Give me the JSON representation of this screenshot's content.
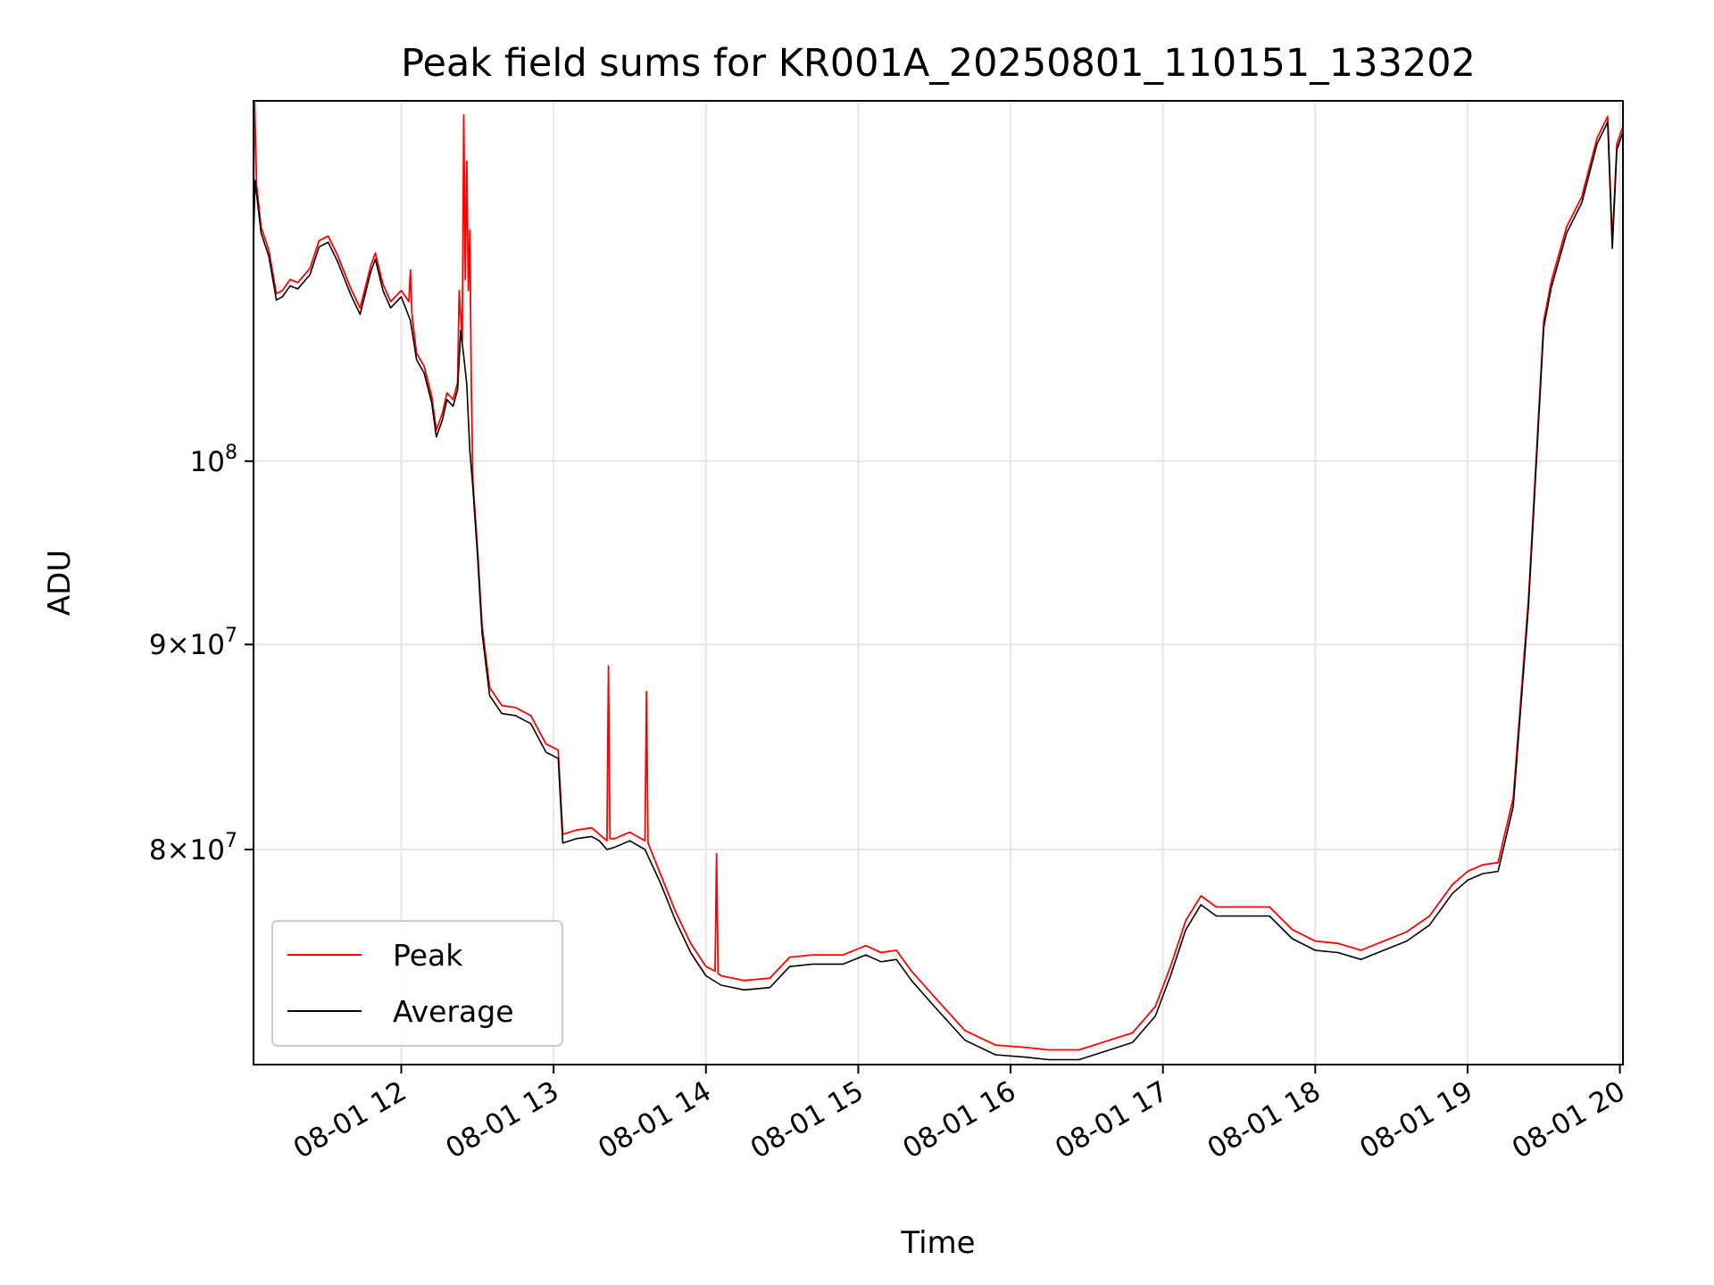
{
  "chart_data": {
    "type": "line",
    "title": "Peak field sums for KR001A_20250801_110151_133202",
    "xlabel": "Time",
    "ylabel": "ADU",
    "y_scale": "log",
    "x_unit": "hours of 2025-08-01",
    "xlim": [
      11.03,
      20.02
    ],
    "ylim": [
      70700000,
      123000000
    ],
    "grid": true,
    "legend_position": "lower-left",
    "x_ticks": [
      {
        "value": 12,
        "label": "08-01 12"
      },
      {
        "value": 13,
        "label": "08-01 13"
      },
      {
        "value": 14,
        "label": "08-01 14"
      },
      {
        "value": 15,
        "label": "08-01 15"
      },
      {
        "value": 16,
        "label": "08-01 16"
      },
      {
        "value": 17,
        "label": "08-01 17"
      },
      {
        "value": 18,
        "label": "08-01 18"
      },
      {
        "value": 19,
        "label": "08-01 19"
      },
      {
        "value": 20,
        "label": "08-01 20"
      }
    ],
    "y_ticks": [
      {
        "value": 80000000,
        "mantissa": "8",
        "base": "10",
        "exp": "7"
      },
      {
        "value": 90000000,
        "mantissa": "9",
        "base": "10",
        "exp": "7"
      },
      {
        "value": 100000000,
        "mantissa": "",
        "base": "10",
        "exp": "8"
      }
    ],
    "series": [
      {
        "name": "Average",
        "color": "#000000",
        "points": [
          [
            11.03,
            113500000
          ],
          [
            11.04,
            117500000
          ],
          [
            11.05,
            116600000
          ],
          [
            11.08,
            114000000
          ],
          [
            11.13,
            112500000
          ],
          [
            11.18,
            109700000
          ],
          [
            11.22,
            109900000
          ],
          [
            11.27,
            110600000
          ],
          [
            11.32,
            110400000
          ],
          [
            11.4,
            111300000
          ],
          [
            11.46,
            113100000
          ],
          [
            11.52,
            113400000
          ],
          [
            11.58,
            112200000
          ],
          [
            11.67,
            110000000
          ],
          [
            11.73,
            108800000
          ],
          [
            11.8,
            111500000
          ],
          [
            11.83,
            112300000
          ],
          [
            11.88,
            110300000
          ],
          [
            11.93,
            109200000
          ],
          [
            12.0,
            109900000
          ],
          [
            12.06,
            108400000
          ],
          [
            12.1,
            106000000
          ],
          [
            12.15,
            105200000
          ],
          [
            12.2,
            103400000
          ],
          [
            12.23,
            101400000
          ],
          [
            12.27,
            102400000
          ],
          [
            12.3,
            103600000
          ],
          [
            12.34,
            103200000
          ],
          [
            12.37,
            104200000
          ],
          [
            12.39,
            107800000
          ],
          [
            12.41,
            106200000
          ],
          [
            12.43,
            104500000
          ],
          [
            12.45,
            100600000
          ],
          [
            12.47,
            98500000
          ],
          [
            12.5,
            94800000
          ],
          [
            12.53,
            90600000
          ],
          [
            12.58,
            87400000
          ],
          [
            12.66,
            86500000
          ],
          [
            12.75,
            86400000
          ],
          [
            12.85,
            86000000
          ],
          [
            12.95,
            84600000
          ],
          [
            13.03,
            84300000
          ],
          [
            13.06,
            80300000
          ],
          [
            13.15,
            80500000
          ],
          [
            13.25,
            80600000
          ],
          [
            13.3,
            80400000
          ],
          [
            13.35,
            80000000
          ],
          [
            13.4,
            80100000
          ],
          [
            13.5,
            80400000
          ],
          [
            13.6,
            80000000
          ],
          [
            13.7,
            78500000
          ],
          [
            13.8,
            76800000
          ],
          [
            13.9,
            75400000
          ],
          [
            14.0,
            74400000
          ],
          [
            14.1,
            74000000
          ],
          [
            14.25,
            73800000
          ],
          [
            14.42,
            73900000
          ],
          [
            14.55,
            74800000
          ],
          [
            14.7,
            74900000
          ],
          [
            14.9,
            74900000
          ],
          [
            15.05,
            75300000
          ],
          [
            15.15,
            75000000
          ],
          [
            15.25,
            75100000
          ],
          [
            15.35,
            74200000
          ],
          [
            15.5,
            73100000
          ],
          [
            15.7,
            71700000
          ],
          [
            15.9,
            71100000
          ],
          [
            16.1,
            71000000
          ],
          [
            16.25,
            70900000
          ],
          [
            16.45,
            70900000
          ],
          [
            16.6,
            71200000
          ],
          [
            16.8,
            71600000
          ],
          [
            16.95,
            72700000
          ],
          [
            17.05,
            74400000
          ],
          [
            17.15,
            76400000
          ],
          [
            17.25,
            77500000
          ],
          [
            17.35,
            77000000
          ],
          [
            17.5,
            77000000
          ],
          [
            17.7,
            77000000
          ],
          [
            17.85,
            76000000
          ],
          [
            18.0,
            75500000
          ],
          [
            18.15,
            75400000
          ],
          [
            18.3,
            75100000
          ],
          [
            18.45,
            75500000
          ],
          [
            18.6,
            75900000
          ],
          [
            18.75,
            76600000
          ],
          [
            18.9,
            78000000
          ],
          [
            19.0,
            78600000
          ],
          [
            19.1,
            78900000
          ],
          [
            19.2,
            79000000
          ],
          [
            19.3,
            82000000
          ],
          [
            19.4,
            92000000
          ],
          [
            19.5,
            108000000
          ],
          [
            19.55,
            110500000
          ],
          [
            19.65,
            114000000
          ],
          [
            19.75,
            116000000
          ],
          [
            19.85,
            120000000
          ],
          [
            19.92,
            121500000
          ],
          [
            19.95,
            113000000
          ],
          [
            19.98,
            119600000
          ],
          [
            20.02,
            120800000
          ]
        ]
      },
      {
        "name": "Peak",
        "color": "#ff0000",
        "points": [
          [
            11.03,
            114000000
          ],
          [
            11.035,
            124000000
          ],
          [
            11.05,
            117200000
          ],
          [
            11.08,
            114400000
          ],
          [
            11.13,
            112900000
          ],
          [
            11.18,
            110100000
          ],
          [
            11.22,
            110300000
          ],
          [
            11.27,
            111000000
          ],
          [
            11.32,
            110800000
          ],
          [
            11.4,
            111700000
          ],
          [
            11.46,
            113500000
          ],
          [
            11.52,
            113800000
          ],
          [
            11.58,
            112600000
          ],
          [
            11.67,
            110400000
          ],
          [
            11.73,
            109200000
          ],
          [
            11.8,
            111900000
          ],
          [
            11.83,
            112700000
          ],
          [
            11.88,
            110700000
          ],
          [
            11.93,
            109600000
          ],
          [
            12.0,
            110300000
          ],
          [
            12.05,
            109600000
          ],
          [
            12.06,
            111600000
          ],
          [
            12.07,
            108800000
          ],
          [
            12.1,
            106400000
          ],
          [
            12.15,
            105600000
          ],
          [
            12.2,
            103800000
          ],
          [
            12.23,
            101800000
          ],
          [
            12.27,
            102800000
          ],
          [
            12.3,
            104000000
          ],
          [
            12.34,
            103600000
          ],
          [
            12.37,
            104600000
          ],
          [
            12.38,
            110300000
          ],
          [
            12.4,
            107100000
          ],
          [
            12.41,
            122000000
          ],
          [
            12.42,
            111000000
          ],
          [
            12.43,
            118800000
          ],
          [
            12.44,
            110300000
          ],
          [
            12.45,
            114200000
          ],
          [
            12.46,
            104300000
          ],
          [
            12.47,
            98900000
          ],
          [
            12.5,
            95200000
          ],
          [
            12.53,
            91000000
          ],
          [
            12.58,
            87800000
          ],
          [
            12.66,
            86900000
          ],
          [
            12.75,
            86800000
          ],
          [
            12.85,
            86400000
          ],
          [
            12.95,
            85000000
          ],
          [
            13.03,
            84700000
          ],
          [
            13.06,
            80700000
          ],
          [
            13.15,
            80900000
          ],
          [
            13.25,
            81000000
          ],
          [
            13.35,
            80400000
          ],
          [
            13.36,
            88900000
          ],
          [
            13.37,
            80500000
          ],
          [
            13.4,
            80500000
          ],
          [
            13.5,
            80800000
          ],
          [
            13.6,
            80400000
          ],
          [
            13.61,
            87600000
          ],
          [
            13.62,
            80300000
          ],
          [
            13.7,
            78900000
          ],
          [
            13.8,
            77200000
          ],
          [
            13.9,
            75800000
          ],
          [
            14.0,
            74800000
          ],
          [
            14.06,
            74600000
          ],
          [
            14.07,
            79800000
          ],
          [
            14.08,
            74500000
          ],
          [
            14.1,
            74400000
          ],
          [
            14.25,
            74200000
          ],
          [
            14.42,
            74300000
          ],
          [
            14.55,
            75200000
          ],
          [
            14.7,
            75300000
          ],
          [
            14.9,
            75300000
          ],
          [
            15.05,
            75700000
          ],
          [
            15.15,
            75400000
          ],
          [
            15.25,
            75500000
          ],
          [
            15.35,
            74600000
          ],
          [
            15.5,
            73500000
          ],
          [
            15.7,
            72100000
          ],
          [
            15.9,
            71500000
          ],
          [
            16.1,
            71400000
          ],
          [
            16.25,
            71300000
          ],
          [
            16.45,
            71300000
          ],
          [
            16.6,
            71600000
          ],
          [
            16.8,
            72000000
          ],
          [
            16.95,
            73100000
          ],
          [
            17.05,
            74800000
          ],
          [
            17.15,
            76800000
          ],
          [
            17.25,
            77900000
          ],
          [
            17.35,
            77400000
          ],
          [
            17.5,
            77400000
          ],
          [
            17.7,
            77400000
          ],
          [
            17.85,
            76400000
          ],
          [
            18.0,
            75900000
          ],
          [
            18.15,
            75800000
          ],
          [
            18.3,
            75500000
          ],
          [
            18.45,
            75900000
          ],
          [
            18.6,
            76300000
          ],
          [
            18.75,
            77000000
          ],
          [
            18.9,
            78400000
          ],
          [
            19.0,
            79000000
          ],
          [
            19.1,
            79300000
          ],
          [
            19.2,
            79400000
          ],
          [
            19.3,
            82400000
          ],
          [
            19.4,
            92400000
          ],
          [
            19.5,
            108400000
          ],
          [
            19.55,
            110900000
          ],
          [
            19.65,
            114400000
          ],
          [
            19.75,
            116400000
          ],
          [
            19.85,
            120400000
          ],
          [
            19.92,
            121900000
          ],
          [
            19.95,
            113400000
          ],
          [
            19.98,
            120000000
          ],
          [
            20.02,
            121200000
          ]
        ]
      }
    ]
  }
}
